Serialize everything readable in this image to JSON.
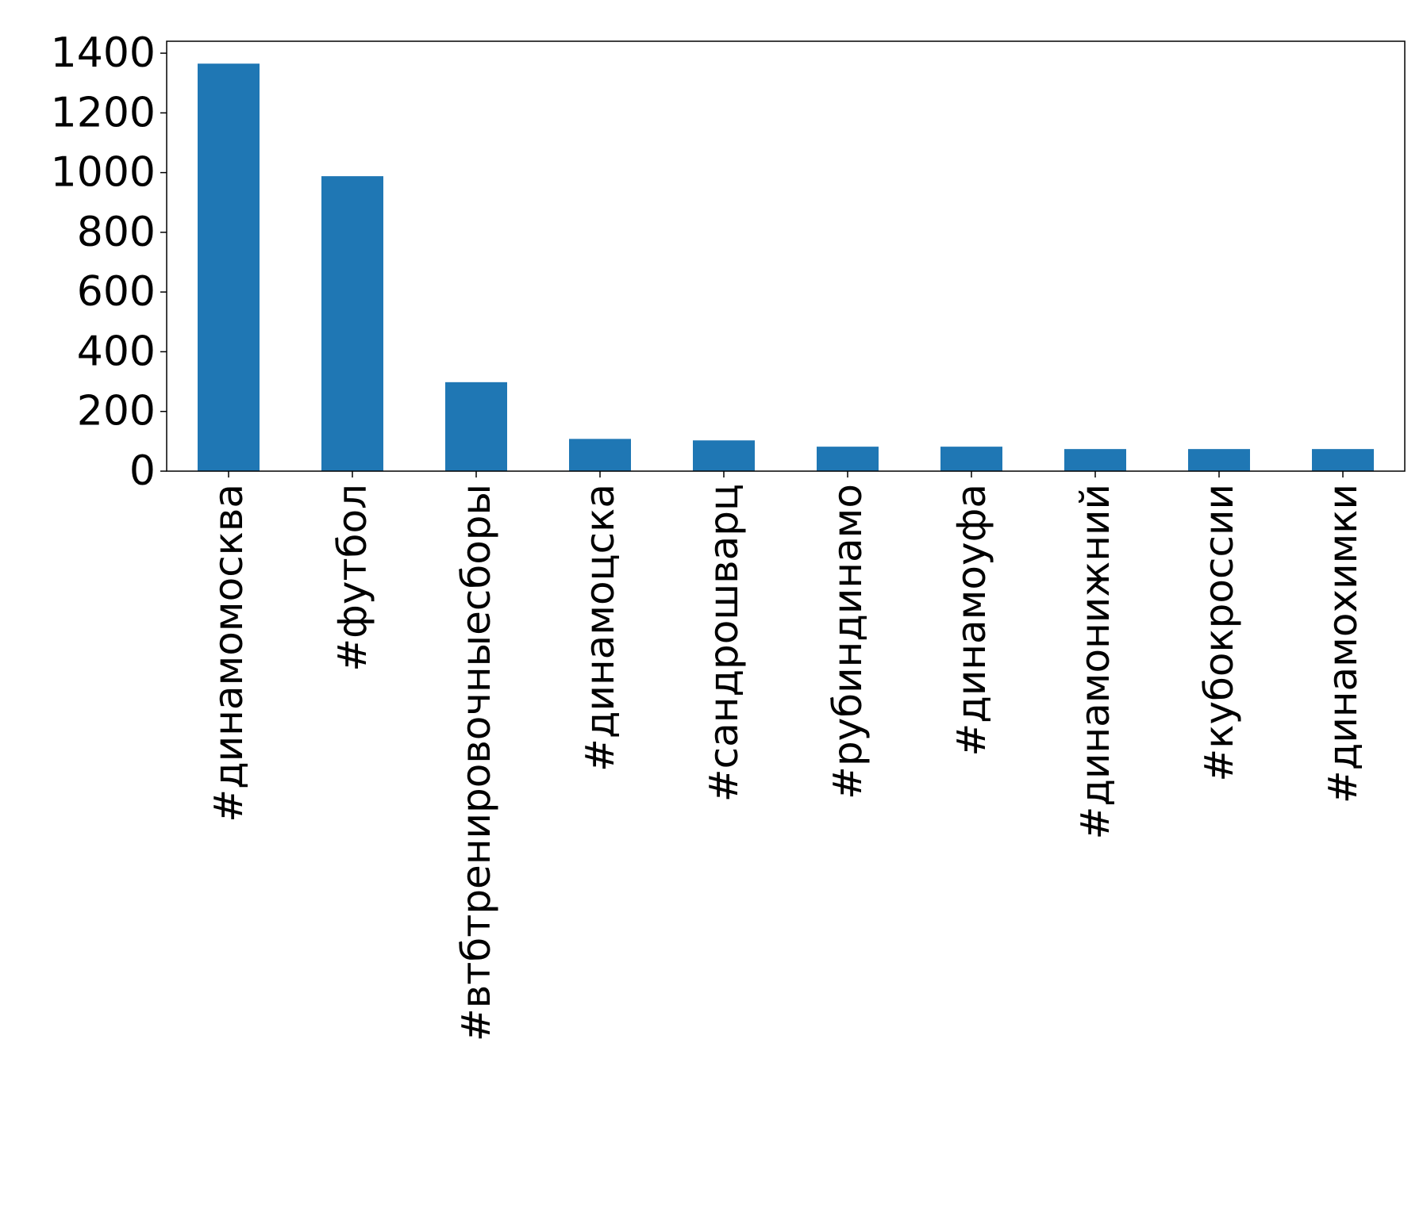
{
  "chart_data": {
    "type": "bar",
    "title": "",
    "xlabel": "",
    "ylabel": "",
    "categories": [
      "#динамомосква",
      "#футбол",
      "#втбтренировочныесборы",
      "#динамоцска",
      "#сандрошварц",
      "#рубиндинамо",
      "#динамоуфа",
      "#динамонижний",
      "#кубокроссии",
      "#динамохимки"
    ],
    "values": [
      1365,
      988,
      298,
      108,
      103,
      82,
      82,
      74,
      74,
      74
    ],
    "ylim": [
      0,
      1440
    ],
    "yticks": [
      0,
      200,
      400,
      600,
      800,
      1000,
      1200,
      1400
    ],
    "grid": false,
    "legend": "none",
    "bar_color": "#1f77b4"
  }
}
